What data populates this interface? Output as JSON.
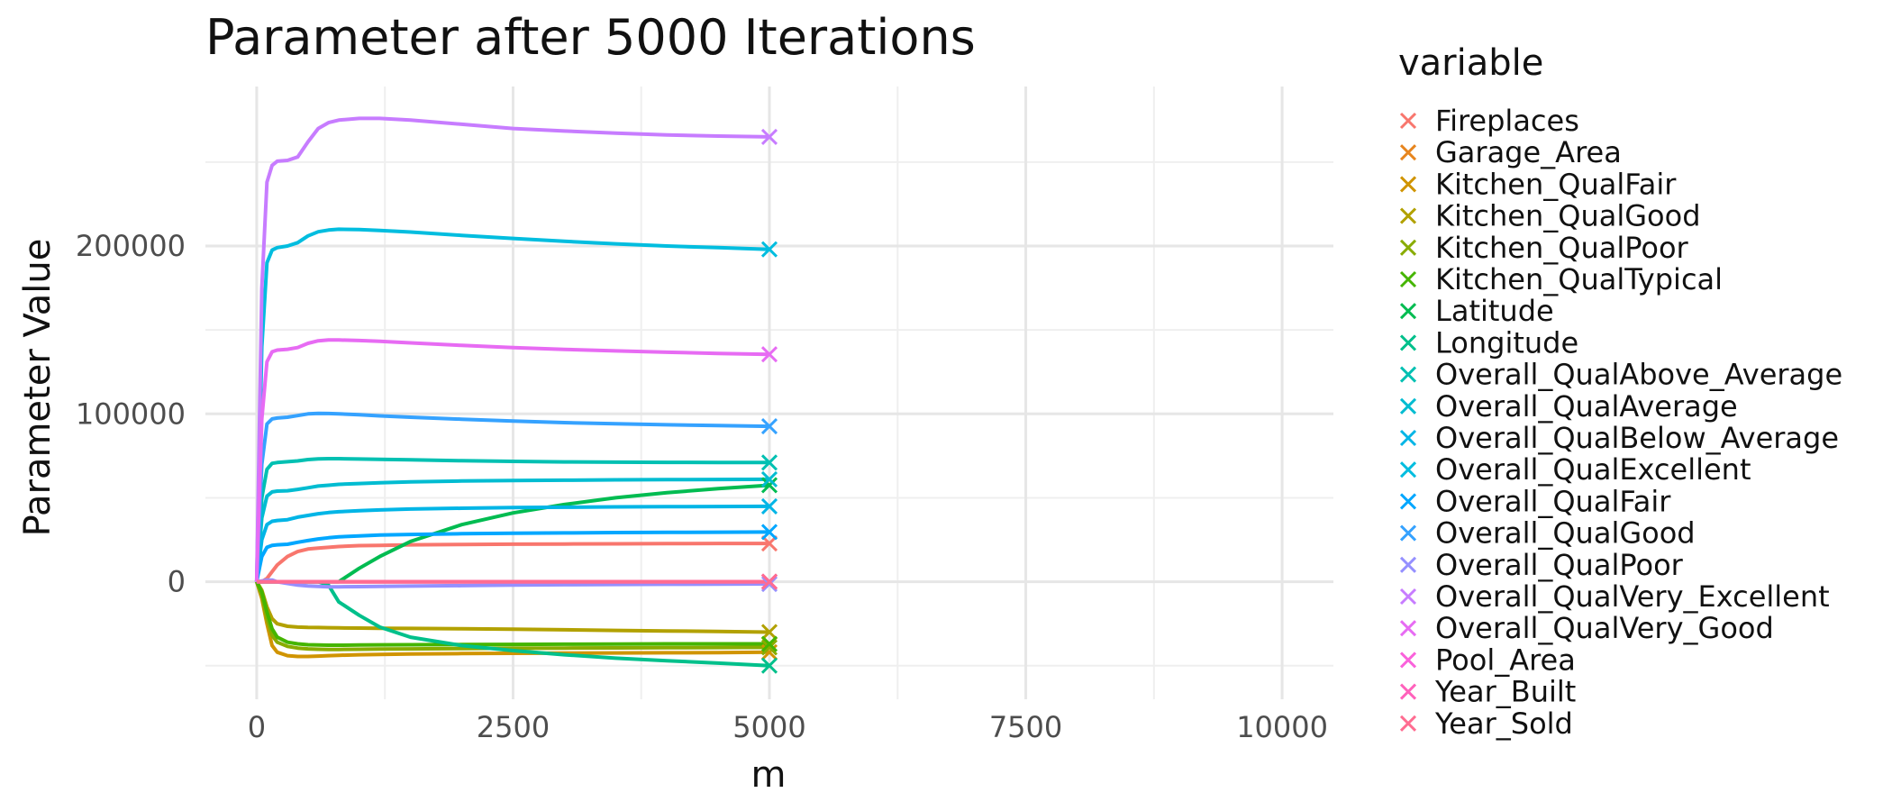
{
  "chart_data": {
    "type": "line",
    "title": "Parameter after 5000 Iterations",
    "xlabel": "m",
    "ylabel": "Parameter Value",
    "xlim": [
      -500,
      10500
    ],
    "ylim": [
      -70000,
      295000
    ],
    "x_ticks": [
      0,
      2500,
      5000,
      7500,
      10000
    ],
    "x_tick_labels": [
      "0",
      "2500",
      "5000",
      "7500",
      "10000"
    ],
    "y_ticks": [
      0,
      100000,
      200000
    ],
    "y_tick_labels": [
      "0",
      "100000",
      "200000"
    ],
    "grid": true,
    "legend": {
      "title": "variable",
      "position": "right",
      "marker": "x"
    },
    "x": [
      0,
      50,
      100,
      150,
      200,
      300,
      400,
      500,
      600,
      700,
      800,
      1000,
      1200,
      1500,
      2000,
      2500,
      3000,
      3500,
      4000,
      4500,
      5000
    ],
    "series": [
      {
        "name": "Fireplaces",
        "color": "#F8766D",
        "values": [
          0,
          0,
          2000,
          6000,
          10000,
          15000,
          18000,
          19500,
          20000,
          20500,
          21000,
          21500,
          21700,
          22000,
          22200,
          22400,
          22500,
          22600,
          22700,
          22800,
          22800
        ]
      },
      {
        "name": "Garage_Area",
        "color": "#E7851E",
        "values": [
          0,
          0,
          0,
          0,
          0,
          0,
          0,
          0,
          0,
          0,
          0,
          0,
          0,
          0,
          0,
          0,
          0,
          0,
          0,
          0,
          0
        ]
      },
      {
        "name": "Kitchen_QualFair",
        "color": "#D09400",
        "values": [
          0,
          -10000,
          -25000,
          -38000,
          -42000,
          -44000,
          -44500,
          -44500,
          -44300,
          -44000,
          -43800,
          -43500,
          -43300,
          -43000,
          -42800,
          -42600,
          -42500,
          -42400,
          -42300,
          -42200,
          -42000
        ]
      },
      {
        "name": "Kitchen_QualGood",
        "color": "#B2A100",
        "values": [
          0,
          -5000,
          -15000,
          -22000,
          -25000,
          -26500,
          -27000,
          -27200,
          -27300,
          -27400,
          -27500,
          -27600,
          -27700,
          -27800,
          -28000,
          -28300,
          -28600,
          -29000,
          -29300,
          -29600,
          -30000
        ]
      },
      {
        "name": "Kitchen_QualPoor",
        "color": "#89AC00",
        "values": [
          0,
          -8000,
          -22000,
          -32000,
          -36000,
          -38500,
          -39500,
          -40000,
          -40200,
          -40300,
          -40300,
          -40200,
          -40100,
          -40000,
          -39800,
          -39600,
          -39500,
          -39400,
          -39300,
          -39200,
          -39100
        ]
      },
      {
        "name": "Kitchen_QualTypical",
        "color": "#45B500",
        "values": [
          0,
          -6000,
          -18000,
          -28000,
          -33000,
          -36000,
          -37000,
          -37500,
          -37700,
          -37800,
          -37800,
          -37700,
          -37600,
          -37500,
          -37400,
          -37300,
          -37200,
          -37100,
          -37000,
          -37000,
          -37000
        ]
      },
      {
        "name": "Latitude",
        "color": "#00BC51",
        "values": [
          0,
          0,
          0,
          0,
          0,
          0,
          0,
          0,
          0,
          0,
          0,
          8000,
          15000,
          24000,
          34000,
          41000,
          46000,
          50000,
          53000,
          55500,
          57500
        ]
      },
      {
        "name": "Longitude",
        "color": "#00C08B",
        "values": [
          0,
          0,
          0,
          0,
          0,
          0,
          0,
          0,
          0,
          -2000,
          -12000,
          -20000,
          -27000,
          -33000,
          -38000,
          -41000,
          -43500,
          -45500,
          -47000,
          -48500,
          -50000
        ]
      },
      {
        "name": "Overall_QualAbove_Average",
        "color": "#00C0B2",
        "values": [
          0,
          50000,
          67000,
          70500,
          71000,
          71500,
          72000,
          72800,
          73200,
          73300,
          73300,
          73100,
          72900,
          72600,
          72100,
          71700,
          71400,
          71200,
          71100,
          71000,
          71000
        ]
      },
      {
        "name": "Overall_QualAverage",
        "color": "#00BCD1",
        "values": [
          0,
          38000,
          51000,
          53500,
          54000,
          54200,
          55000,
          56000,
          57000,
          57500,
          58000,
          58500,
          59000,
          59500,
          60000,
          60300,
          60500,
          60700,
          60800,
          60900,
          61000
        ]
      },
      {
        "name": "Overall_QualBelow_Average",
        "color": "#00B5E6",
        "values": [
          0,
          25000,
          34000,
          36000,
          36500,
          37000,
          38500,
          39500,
          40500,
          41200,
          41700,
          42300,
          42800,
          43300,
          43800,
          44200,
          44400,
          44600,
          44700,
          44800,
          44900
        ]
      },
      {
        "name": "Overall_QualExcellent",
        "color": "#00BDDF",
        "values": [
          0,
          140000,
          190000,
          197500,
          199000,
          200000,
          202000,
          206000,
          208500,
          209500,
          210000,
          209800,
          209300,
          208300,
          206300,
          204500,
          202800,
          201300,
          200000,
          199000,
          198000
        ]
      },
      {
        "name": "Overall_QualFair",
        "color": "#00A7FF",
        "values": [
          0,
          15000,
          20500,
          21700,
          22000,
          22300,
          23500,
          24500,
          25500,
          26200,
          26700,
          27300,
          27800,
          28200,
          28600,
          28900,
          29100,
          29300,
          29400,
          29500,
          29600
        ]
      },
      {
        "name": "Overall_QualGood",
        "color": "#35A2FF",
        "values": [
          0,
          70000,
          94000,
          97000,
          97500,
          98000,
          99000,
          100000,
          100300,
          100200,
          100000,
          99500,
          98800,
          98000,
          96800,
          95700,
          94800,
          94100,
          93500,
          93000,
          92600
        ]
      },
      {
        "name": "Overall_QualPoor",
        "color": "#9590FF",
        "values": [
          0,
          500,
          1000,
          1000,
          0,
          -1000,
          -2000,
          -2500,
          -2800,
          -3000,
          -3000,
          -2900,
          -2800,
          -2600,
          -2300,
          -2000,
          -1800,
          -1600,
          -1500,
          -1400,
          -1300
        ]
      },
      {
        "name": "Overall_QualVery_Excellent",
        "color": "#C77CFF",
        "values": [
          0,
          175000,
          238000,
          248000,
          250500,
          251000,
          253000,
          262000,
          270000,
          273500,
          275000,
          276000,
          276000,
          275000,
          272500,
          270000,
          268500,
          267200,
          266200,
          265500,
          265000
        ]
      },
      {
        "name": "Overall_QualVery_Good",
        "color": "#E76BF3",
        "values": [
          0,
          97000,
          131000,
          137000,
          138000,
          138500,
          139500,
          142000,
          143500,
          144000,
          144000,
          143700,
          143200,
          142300,
          140800,
          139500,
          138400,
          137500,
          136700,
          136000,
          135500
        ]
      },
      {
        "name": "Pool_Area",
        "color": "#FA62DB",
        "values": [
          0,
          0,
          0,
          0,
          0,
          0,
          0,
          0,
          0,
          0,
          0,
          0,
          0,
          0,
          0,
          0,
          0,
          0,
          0,
          0,
          0
        ]
      },
      {
        "name": "Year_Built",
        "color": "#FF62BC",
        "values": [
          0,
          0,
          0,
          0,
          0,
          0,
          0,
          0,
          0,
          0,
          0,
          0,
          0,
          0,
          0,
          0,
          0,
          0,
          0,
          0,
          0
        ]
      },
      {
        "name": "Year_Sold",
        "color": "#FF6C91",
        "values": [
          0,
          0,
          0,
          0,
          0,
          0,
          0,
          0,
          0,
          0,
          0,
          0,
          0,
          0,
          0,
          0,
          0,
          0,
          0,
          0,
          0
        ]
      }
    ]
  }
}
